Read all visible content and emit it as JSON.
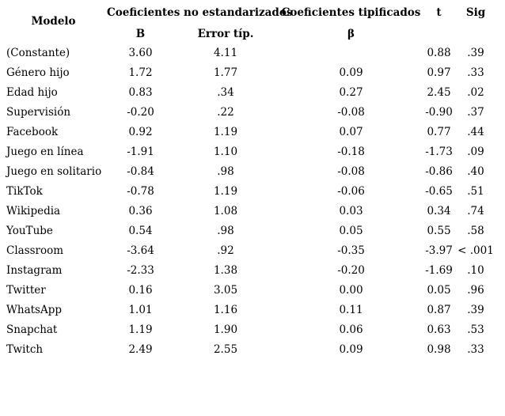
{
  "table": {
    "headers": {
      "modelo": "Modelo",
      "group_unstandardized": "Coeficientes no estandarizados",
      "group_standardized": "Coeficientes tipificados",
      "b": "B",
      "error": "Error típ.",
      "beta": "β",
      "t": "t",
      "sig": "Sig"
    },
    "rows": [
      {
        "label": "(Constante)",
        "b": "3.60",
        "error": "4.11",
        "beta": "",
        "t": "0.88",
        "sig": ".39"
      },
      {
        "label": "Género hijo",
        "b": "1.72",
        "error": "1.77",
        "beta": "0.09",
        "t": "0.97",
        "sig": ".33"
      },
      {
        "label": "Edad hijo",
        "b": "0.83",
        "error": ".34",
        "beta": "0.27",
        "t": "2.45",
        "sig": ".02"
      },
      {
        "label": "Supervisión",
        "b": "-0.20",
        "error": ".22",
        "beta": "-0.08",
        "t": "-0.90",
        "sig": ".37"
      },
      {
        "label": "Facebook",
        "b": "0.92",
        "error": "1.19",
        "beta": "0.07",
        "t": "0.77",
        "sig": ".44"
      },
      {
        "label": "Juego en línea",
        "b": "-1.91",
        "error": "1.10",
        "beta": "-0.18",
        "t": "-1.73",
        "sig": ".09"
      },
      {
        "label": "Juego en solitario",
        "b": "-0.84",
        "error": ".98",
        "beta": "-0.08",
        "t": "-0.86",
        "sig": ".40"
      },
      {
        "label": "TikTok",
        "b": "-0.78",
        "error": "1.19",
        "beta": "-0.06",
        "t": "-0.65",
        "sig": ".51"
      },
      {
        "label": "Wikipedia",
        "b": "0.36",
        "error": "1.08",
        "beta": "0.03",
        "t": "0.34",
        "sig": ".74"
      },
      {
        "label": "YouTube",
        "b": "0.54",
        "error": ".98",
        "beta": "0.05",
        "t": "0.55",
        "sig": ".58"
      },
      {
        "label": "Classroom",
        "b": "-3.64",
        "error": ".92",
        "beta": "-0.35",
        "t": "-3.97",
        "sig": "< .001"
      },
      {
        "label": "Instagram",
        "b": "-2.33",
        "error": "1.38",
        "beta": "-0.20",
        "t": "-1.69",
        "sig": ".10"
      },
      {
        "label": "Twitter",
        "b": "0.16",
        "error": "3.05",
        "beta": "0.00",
        "t": "0.05",
        "sig": ".96"
      },
      {
        "label": "WhatsApp",
        "b": "1.01",
        "error": "1.16",
        "beta": "0.11",
        "t": "0.87",
        "sig": ".39"
      },
      {
        "label": "Snapchat",
        "b": "1.19",
        "error": "1.90",
        "beta": "0.06",
        "t": "0.63",
        "sig": ".53"
      },
      {
        "label": "Twitch",
        "b": "2.49",
        "error": "2.55",
        "beta": "0.09",
        "t": "0.98",
        "sig": ".33"
      }
    ]
  }
}
